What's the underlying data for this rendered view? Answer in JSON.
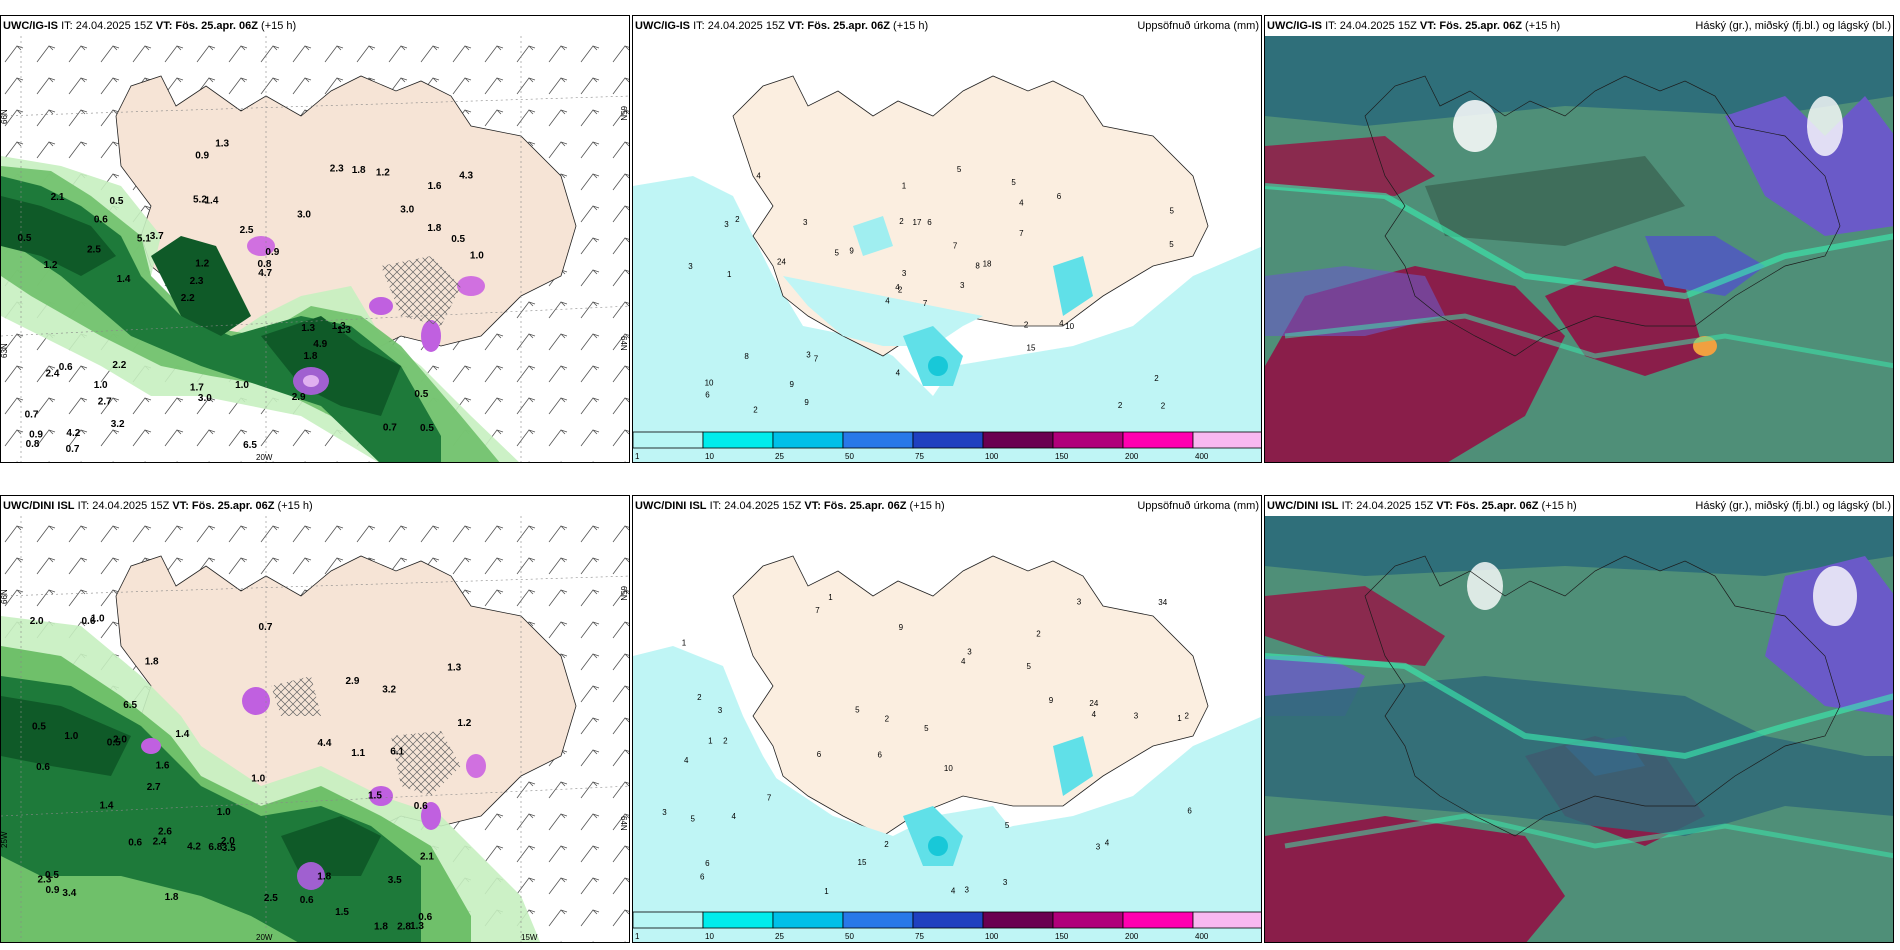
{
  "rows": [
    {
      "model_label": "UWC/IG-IS",
      "it_text": "IT: 24.04.2025 15Z",
      "vt_label": "VT:",
      "vt_value": "Fös. 25.apr. 06Z",
      "lead": "(+15 h)"
    },
    {
      "model_label": "UWC/DINI ISL",
      "it_text": "IT: 24.04.2025 15Z",
      "vt_label": "VT:",
      "vt_value": "Fös. 25.apr. 06Z",
      "lead": "(+15 h)"
    }
  ],
  "precip_title": "Uppsöfnuð úrkoma (mm)",
  "cloud_title": "Háský (gr.), miðský (fj.bl.) og lágský (bl.)",
  "colorbar": {
    "ticks": [
      "1",
      "10",
      "25",
      "50",
      "75",
      "100",
      "150",
      "200",
      "400"
    ],
    "colors": [
      "#b8f7f5",
      "#00ecec",
      "#00c0e8",
      "#2878e8",
      "#2040c0",
      "#6a0050",
      "#b0007a",
      "#ff00b0",
      "#f8b8f0"
    ]
  },
  "axes": {
    "lat_top": "66N",
    "lat_mid": "64N",
    "lat_bot": "63N",
    "lat_right_top": "65N",
    "lat_right_mid": "64N",
    "lon_20": "20W",
    "lon_15": "15W",
    "lon_25": "25W"
  },
  "wind_values_top": [
    "0.5",
    "1.2",
    "1.6",
    "2.2",
    "3.0",
    "4.2",
    "5.2",
    "2.5",
    "0.6",
    "3.7",
    "0.7",
    "2.7",
    "1.4",
    "0.9",
    "1.3",
    "2.1",
    "0.9",
    "1.0",
    "1.3",
    "1.8",
    "2.3",
    "1.7",
    "1.2",
    "0.5",
    "2.3",
    "2.2",
    "0.7",
    "0.5",
    "1.3",
    "6.5",
    "5.1",
    "2.5",
    "1.8",
    "3.2",
    "0.5",
    "0.8",
    "0.9",
    "3.0",
    "4.7",
    "2.4",
    "3.0",
    "4.3",
    "4.9",
    "2.9",
    "1.0",
    "0.7",
    "0.8",
    "1.0",
    "1.2",
    "1.3",
    "1.4",
    "0.5",
    "0.6",
    "1.8"
  ],
  "wind_values_bot": [
    "1.0",
    "0.5",
    "0.6",
    "1.5",
    "1.3",
    "1.8",
    "6.8",
    "2.7",
    "2.4",
    "1.1",
    "6.1",
    "0.7",
    "2.0",
    "1.8",
    "1.6",
    "1.8",
    "1.0",
    "1.2",
    "1.3",
    "1.4",
    "2.8",
    "2.0",
    "0.6",
    "0.6",
    "3.5",
    "4.4",
    "2.5",
    "0.5",
    "3.2",
    "2.3",
    "2.6",
    "4.2",
    "3.4",
    "2.1",
    "2.9",
    "0.5",
    "1.0",
    "1.0",
    "1.4",
    "1.8",
    "0.6",
    "0.6",
    "0.6",
    "1.5",
    "3.5",
    "0.9",
    "2.0",
    "6.5"
  ],
  "precip_values_top": [
    "7",
    "3",
    "2",
    "10",
    "8",
    "7",
    "5",
    "6",
    "4",
    "3",
    "4",
    "2",
    "1",
    "5",
    "4",
    "7",
    "2",
    "2",
    "7",
    "8",
    "9",
    "6",
    "9",
    "17",
    "18",
    "10",
    "2",
    "1",
    "3",
    "2",
    "5",
    "4",
    "4",
    "3",
    "3",
    "6",
    "3",
    "2",
    "2",
    "4",
    "5",
    "5",
    "24",
    "15",
    "9"
  ],
  "precip_values_bot": [
    "1",
    "2",
    "1",
    "6",
    "10",
    "2",
    "1",
    "5",
    "4",
    "4",
    "5",
    "6",
    "7",
    "6",
    "4",
    "3",
    "2",
    "3",
    "9",
    "7",
    "3",
    "1",
    "2",
    "3",
    "3",
    "2",
    "2",
    "4",
    "4",
    "5",
    "3",
    "3",
    "4",
    "5",
    "5",
    "6",
    "24",
    "15",
    "34",
    "9",
    "6",
    "1",
    "3"
  ]
}
